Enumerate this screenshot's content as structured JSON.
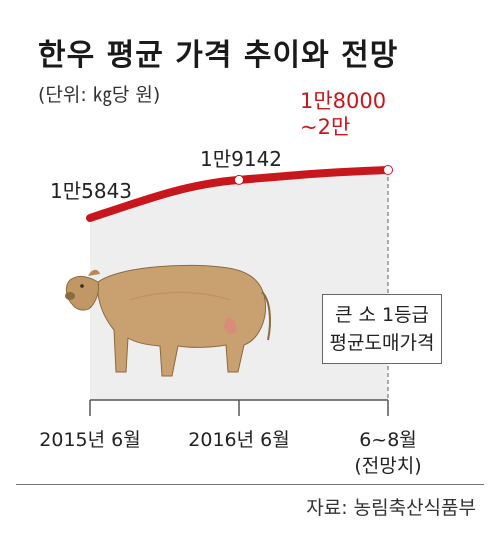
{
  "title": "한우 평균 가격 추이와 전망",
  "unit": "(단위: ㎏당 원)",
  "note": [
    "큰 소 1등급",
    "평균도매가격"
  ],
  "source": "자료: 농림축산식품부",
  "colors": {
    "line": "#c8161d",
    "area": "#eeeeee",
    "forecast_label": "#c8161d"
  },
  "icons": [
    "cow-illustration"
  ],
  "chart_data": {
    "type": "line",
    "title": "한우 평균 가격 추이와 전망",
    "ylabel": "(단위: ㎏당 원)",
    "categories": [
      "2015년 6월",
      "2016년 6월",
      "6~8월\n(전망치)"
    ],
    "x_tick_labels": [
      [
        "2015년 6월"
      ],
      [
        "2016년 6월"
      ],
      [
        "6~8월",
        "(전망치)"
      ]
    ],
    "values": [
      15843,
      19142,
      20000
    ],
    "forecast_range": [
      18000,
      20000
    ],
    "data_labels": [
      [
        "1만5843"
      ],
      [
        "1만9142"
      ],
      [
        "1만8000",
        "~2만"
      ]
    ],
    "ylim": [
      0,
      20000
    ],
    "grid": false,
    "legend": "none"
  }
}
